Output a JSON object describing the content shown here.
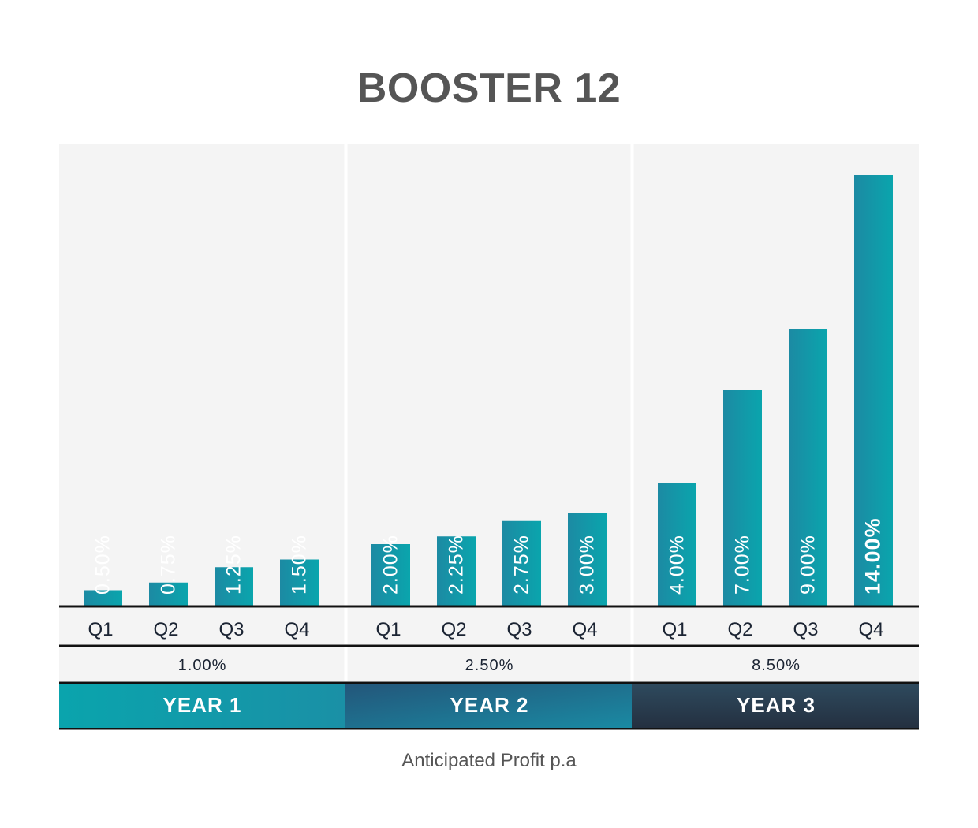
{
  "chart_data": {
    "type": "bar",
    "title": "BOOSTER 12",
    "xlabel": "",
    "ylabel": "",
    "ylim": [
      0,
      15
    ],
    "grid": false,
    "categories": [
      "Q1",
      "Q2",
      "Q3",
      "Q4",
      "Q1",
      "Q2",
      "Q3",
      "Q4",
      "Q1",
      "Q2",
      "Q3",
      "Q4"
    ],
    "values": [
      0.5,
      0.75,
      1.25,
      1.5,
      2.0,
      2.25,
      2.75,
      3.0,
      4.0,
      7.0,
      9.0,
      14.0
    ],
    "value_labels": [
      "0.50%",
      "0.75%",
      "1.25%",
      "1.50%",
      "2.00%",
      "2.25%",
      "2.75%",
      "3.00%",
      "4.00%",
      "7.00%",
      "9.00%",
      "14.00%"
    ],
    "highlight_index": 11,
    "groups": [
      {
        "label": "YEAR 1",
        "total": "1.00%",
        "quarters": [
          "Q1",
          "Q2",
          "Q3",
          "Q4"
        ],
        "color": "#0ea5b0"
      },
      {
        "label": "YEAR 2",
        "total": "2.50%",
        "quarters": [
          "Q1",
          "Q2",
          "Q3",
          "Q4"
        ],
        "color": "#1f5f7a"
      },
      {
        "label": "YEAR 3",
        "total": "8.50%",
        "quarters": [
          "Q1",
          "Q2",
          "Q3",
          "Q4"
        ],
        "color": "#2c3a4a"
      }
    ],
    "caption": "Anticipated Profit p.a"
  },
  "colors": {
    "bar_gradient_start": "#1c8aa3",
    "bar_gradient_end": "#0aa5ad",
    "panel_bg": "#f4f4f4",
    "title_text": "#555555",
    "axis_text": "#1b2433"
  }
}
